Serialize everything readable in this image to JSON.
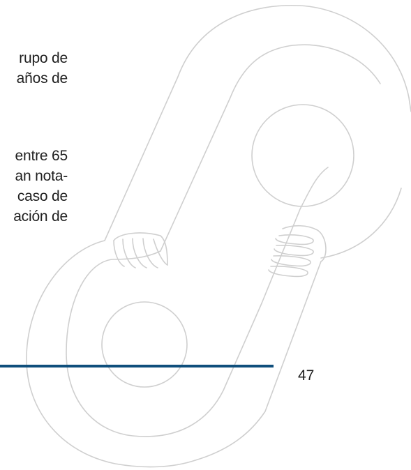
{
  "body_text": {
    "paragraph_1": [
      "rupo de",
      "años de"
    ],
    "paragraph_2": [
      "entre 65",
      "an nota-",
      "caso de",
      "ación de"
    ]
  },
  "footer": {
    "page_number": "47",
    "rule_color": "#0f4f7c"
  },
  "watermark": {
    "icon": "interlocking-hands-logo-icon",
    "stroke_color": "#cfcfcf"
  }
}
